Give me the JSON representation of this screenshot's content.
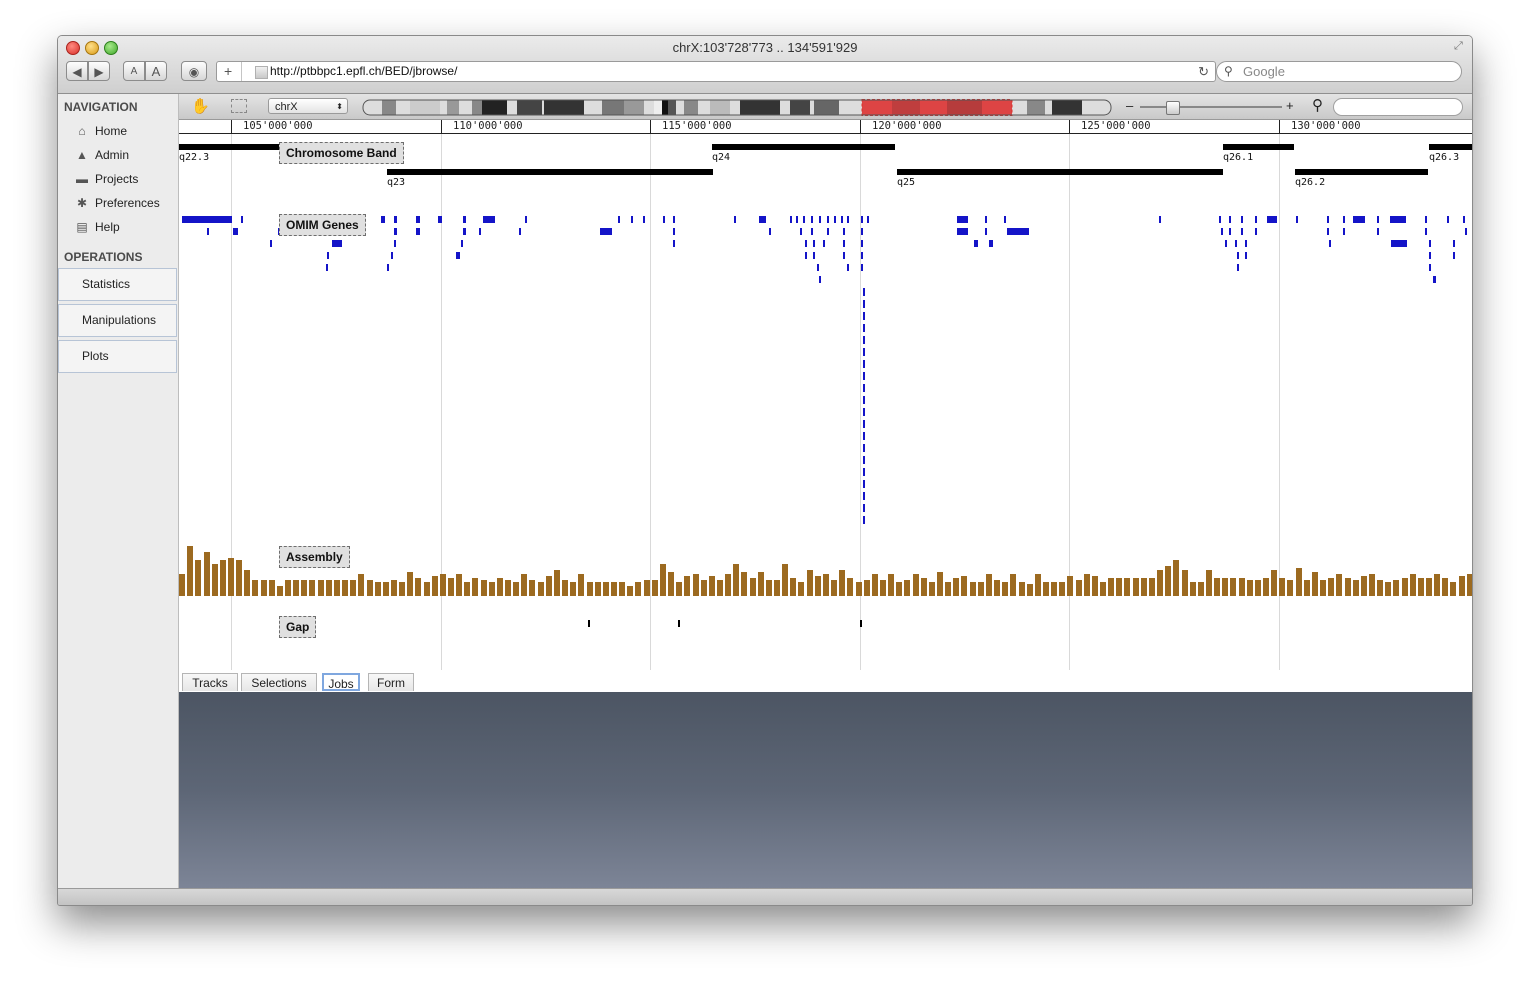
{
  "window": {
    "title": "chrX:103'728'773 .. 134'591'929"
  },
  "browser": {
    "url": "http://ptbbpc1.epfl.ch/BED/jbrowse/",
    "search_placeholder": "Google",
    "text_small": "A",
    "text_large": "A"
  },
  "sidebar": {
    "navigation_heading": "NAVIGATION",
    "nav_items": [
      {
        "label": "Home",
        "icon": "home-icon"
      },
      {
        "label": "Admin",
        "icon": "graduation-cap-icon"
      },
      {
        "label": "Projects",
        "icon": "folder-icon"
      },
      {
        "label": "Preferences",
        "icon": "gear-icon"
      },
      {
        "label": "Help",
        "icon": "book-icon"
      }
    ],
    "operations_heading": "OPERATIONS",
    "operations": [
      "Statistics",
      "Manipulations",
      "Plots"
    ]
  },
  "jbrowse": {
    "chromosome": "chrX",
    "ruler_ticks": [
      "105'000'000",
      "110'000'000",
      "115'000'000",
      "120'000'000",
      "125'000'000",
      "130'000'000"
    ],
    "tracks": {
      "chromosome_band": "Chromosome Band",
      "omim_genes": "OMIM Genes",
      "assembly": "Assembly",
      "gap": "Gap"
    },
    "bands": [
      "q22.3",
      "q23",
      "q24",
      "q25",
      "q26.1",
      "q26.2",
      "q26.3"
    ]
  },
  "bottom_tabs": [
    "Tracks",
    "Selections",
    "Jobs",
    "Form"
  ],
  "colors": {
    "gene": "#1414c8",
    "assembly": "#9c6a20",
    "highlight": "#d9302a"
  }
}
